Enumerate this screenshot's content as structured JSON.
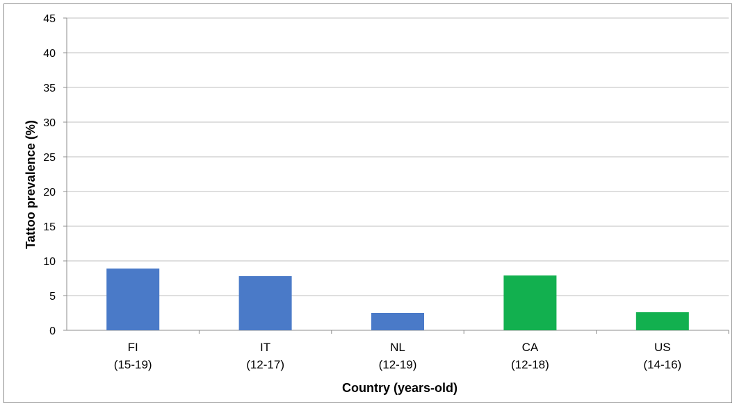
{
  "chart_data": {
    "type": "bar",
    "title": "",
    "xlabel": "Country (years-old)",
    "ylabel": "Tattoo prevalence (%)",
    "ylim": [
      0,
      45
    ],
    "yticks": [
      0,
      5,
      10,
      15,
      20,
      25,
      30,
      35,
      40,
      45
    ],
    "grid": true,
    "legend": "none",
    "categories": [
      {
        "code": "FI",
        "range": "(15-19)"
      },
      {
        "code": "IT",
        "range": "(12-17)"
      },
      {
        "code": "NL",
        "range": "(12-19)"
      },
      {
        "code": "CA",
        "range": "(12-18)"
      },
      {
        "code": "US",
        "range": "(14-16)"
      }
    ],
    "values": [
      8.9,
      7.8,
      2.5,
      7.9,
      2.6
    ],
    "bar_colors": [
      "#4a7ac8",
      "#4a7ac8",
      "#4a7ac8",
      "#12b04f",
      "#12b04f"
    ],
    "colors": {
      "europe": "#4a7ac8",
      "north_america": "#12b04f",
      "gridline": "#bfbfbf",
      "axis": "#8c8c8c"
    }
  }
}
